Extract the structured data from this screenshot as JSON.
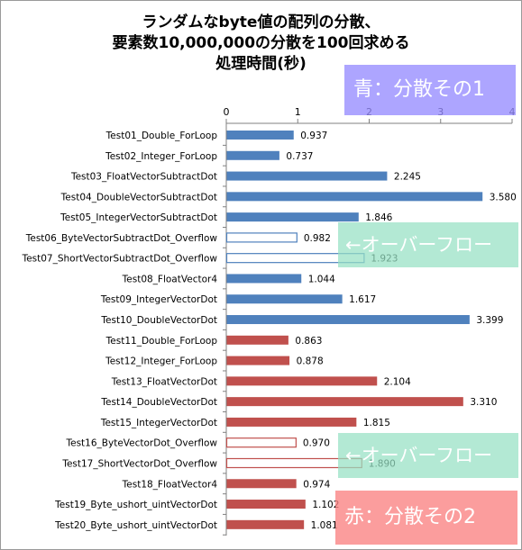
{
  "title": {
    "line1": "ランダムなbyte値の配列の分散、",
    "line2": "要素数10,000,000の分散を100回求める",
    "line3": "処理時間(秒)"
  },
  "annotations": {
    "blue_note": "青：分散その1",
    "overflow_note_1": "←オーバーフロー",
    "overflow_note_2": "←オーバーフロー",
    "red_note": "赤：分散その2"
  },
  "colors": {
    "blue": "#4f81bd",
    "red": "#c0504d",
    "axis": "#808080"
  },
  "chart_data": {
    "type": "bar",
    "orientation": "horizontal",
    "title": "ランダムなbyte値の配列の分散、要素数10,000,000の分散を100回求める処理時間(秒)",
    "xlim": [
      0,
      4
    ],
    "xticks": [
      0,
      1,
      2,
      3,
      4
    ],
    "xaxis_position": "top",
    "grid": false,
    "legend": "none",
    "categories": [
      "Test01_Double_ForLoop",
      "Test02_Integer_ForLoop",
      "Test03_FloatVectorSubtractDot",
      "Test04_DoubleVectorSubtractDot",
      "Test05_IntegerVectorSubtractDot",
      "Test06_ByteVectorSubtractDot_Overflow",
      "Test07_ShortVectorSubtractDot_Overflow",
      "Test08_FloatVector4",
      "Test09_IntegerVectorDot",
      "Test10_DoubleVectorDot",
      "Test11_Double_ForLoop",
      "Test12_Integer_ForLoop",
      "Test13_FloatVectorDot",
      "Test14_DoubleVectorDot",
      "Test15_IntegerVectorDot",
      "Test16_ByteVectorDot_Overflow",
      "Test17_ShortVectorDot_Overflow",
      "Test18_FloatVector4",
      "Test19_Byte_ushort_uintVectorDot",
      "Test20_Byte_ushort_uintVectorDot"
    ],
    "values": [
      0.937,
      0.737,
      2.245,
      3.58,
      1.846,
      0.982,
      1.923,
      1.044,
      1.617,
      3.399,
      0.863,
      0.878,
      2.104,
      3.31,
      1.815,
      0.97,
      1.89,
      0.974,
      1.102,
      1.081
    ],
    "labels": [
      "0.937",
      "0.737",
      "2.245",
      "3.580",
      "1.846",
      "0.982",
      "1.923",
      "1.044",
      "1.617",
      "3.399",
      "0.863",
      "0.878",
      "2.104",
      "3.310",
      "1.815",
      "0.970",
      "1.890",
      "0.974",
      "1.102",
      "1.081"
    ],
    "bar_colors": [
      "blue",
      "blue",
      "blue",
      "blue",
      "blue",
      "blue",
      "blue",
      "blue",
      "blue",
      "blue",
      "red",
      "red",
      "red",
      "red",
      "red",
      "red",
      "red",
      "red",
      "red",
      "red"
    ],
    "bar_fill": [
      "solid",
      "solid",
      "solid",
      "solid",
      "solid",
      "hollow",
      "hollow",
      "solid",
      "solid",
      "solid",
      "solid",
      "solid",
      "solid",
      "solid",
      "solid",
      "hollow",
      "hollow",
      "solid",
      "solid",
      "solid"
    ]
  }
}
